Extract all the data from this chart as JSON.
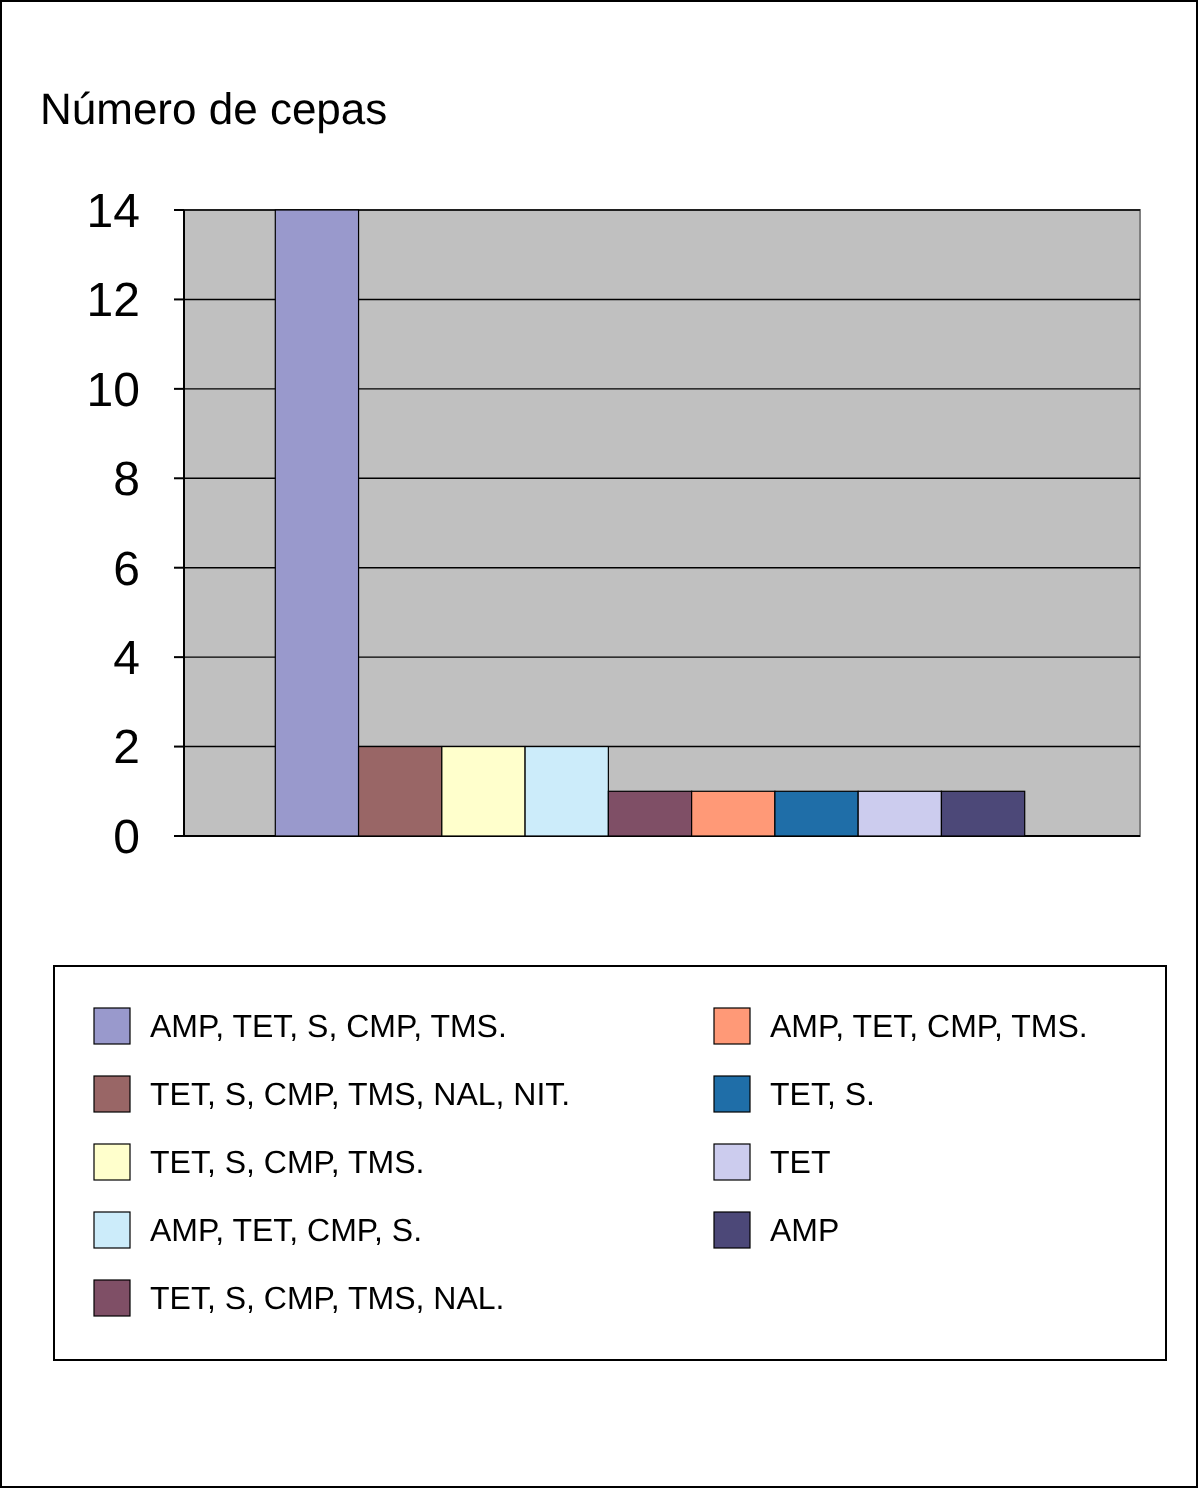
{
  "chart_data": {
    "type": "bar",
    "ylabel": "Número de cepas",
    "categories": [
      null
    ],
    "series": [
      {
        "name": "AMP, TET, S, CMP, TMS.",
        "color": "#9999cc",
        "values": [
          14
        ]
      },
      {
        "name": "TET, S, CMP, TMS, NAL, NIT.",
        "color": "#996666",
        "values": [
          2
        ]
      },
      {
        "name": "TET, S, CMP, TMS.",
        "color": "#ffffcc",
        "values": [
          2
        ]
      },
      {
        "name": "AMP, TET, CMP, S.",
        "color": "#ccecfa",
        "values": [
          2
        ]
      },
      {
        "name": "TET, S, CMP, TMS, NAL.",
        "color": "#7f4f66",
        "values": [
          1
        ]
      },
      {
        "name": "AMP, TET, CMP, TMS.",
        "color": "#ff9977",
        "values": [
          1
        ]
      },
      {
        "name": "TET, S.",
        "color": "#1f6ea8",
        "values": [
          1
        ]
      },
      {
        "name": "TET",
        "color": "#ccccee",
        "values": [
          1
        ]
      },
      {
        "name": "AMP",
        "color": "#4c4878",
        "values": [
          1
        ]
      }
    ],
    "ylim": [
      0,
      14
    ],
    "yticks": [
      0,
      2,
      4,
      6,
      8,
      10,
      12,
      14
    ],
    "grid": "y",
    "legend": "bottom"
  }
}
